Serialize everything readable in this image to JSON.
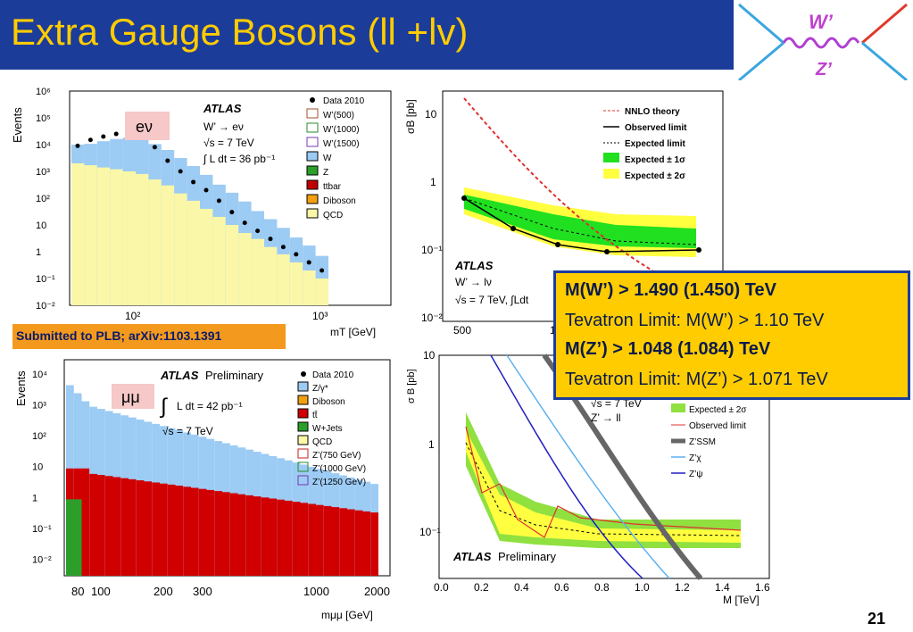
{
  "slide": {
    "title": "Extra Gauge Bosons (ll +lv)",
    "page_number": "21"
  },
  "feynman": {
    "label_w": "W’",
    "label_z": "Z’"
  },
  "banner": {
    "text": "Submitted to PLB; arXiv:1103.1391"
  },
  "limits_box": {
    "line1": "M(W’) > 1.490 (1.450) TeV",
    "line2": "Tevatron Limit: M(W’) > 1.10 TeV",
    "line3": "M(Z’) > 1.048 (1.084) TeV",
    "line4": "Tevatron Limit: M(Z’) > 1.071 TeV"
  },
  "colors": {
    "header_bg": "#1c3c9a",
    "title": "#ffcc00",
    "box": "#ffcc00",
    "banner": "#f39a1e"
  },
  "chart_data": [
    {
      "type": "bar",
      "name_key": "ev",
      "ylabel": "Events",
      "xlabel": "mT [GeV]",
      "channel_label": "eν",
      "atlas_label": "ATLAS",
      "info": [
        "W’ → eν",
        "√s = 7 TeV",
        "∫ L dt = 36 pb⁻¹"
      ],
      "ytick_labels": [
        "10⁶",
        "10⁵",
        "10⁴",
        "10³",
        "10²",
        "10",
        "1",
        "10⁻¹",
        "10⁻²"
      ],
      "xtick_labels": [
        "10²",
        "10³"
      ],
      "legend": [
        "Data 2010",
        "W’(500)",
        "W’(1000)",
        "W’(1500)",
        "W",
        "Z",
        "ttbar",
        "Diboson",
        "QCD"
      ],
      "series": [
        {
          "name": "QCD",
          "values": [
            2000,
            1700,
            1400,
            1200,
            1000,
            800,
            500,
            300,
            150,
            80,
            40,
            20,
            10,
            5,
            3,
            1.5,
            0.8,
            0.4,
            0.2,
            0.1
          ]
        },
        {
          "name": "W",
          "values": [
            8000,
            9000,
            12000,
            15000,
            17000,
            14000,
            10000,
            6000,
            3000,
            1500,
            700,
            300,
            150,
            70,
            30,
            15,
            7,
            3,
            1.5,
            0.6
          ]
        }
      ],
      "data_points": [
        9000,
        15000,
        20000,
        25000,
        25000,
        18000,
        8000,
        2500,
        1000,
        400,
        200,
        80,
        30,
        12,
        6,
        3,
        1.5,
        0.8,
        0.4,
        0.2
      ]
    },
    {
      "type": "line",
      "name_key": "wlimit",
      "ylabel": "σB [pb]",
      "xtick_labels": [
        "500",
        "10"
      ],
      "ytick_labels": [
        "10",
        "1",
        "10⁻¹",
        "10⁻²"
      ],
      "atlas_label": "ATLAS",
      "info": [
        "W’ → lν",
        "√s = 7 TeV,  ∫Ldt"
      ],
      "legend": [
        "NNLO theory",
        "Observed limit",
        "Expected  limit",
        "Expected ± 1σ",
        "Expected ± 2σ"
      ],
      "x": [
        500,
        750,
        1000,
        1250,
        1500
      ],
      "observed": [
        0.6,
        0.22,
        0.12,
        0.1,
        0.1
      ],
      "theory": [
        18,
        3.5,
        0.8,
        0.2,
        0.05
      ]
    },
    {
      "type": "bar",
      "name_key": "mumu",
      "ylabel": "Events",
      "xlabel": "mμμ [GeV]",
      "channel_label": "μμ",
      "atlas_label": "ATLAS",
      "atlas_sub": "Preliminary",
      "info": [
        "∫",
        "L dt = 42 pb⁻¹",
        "√s = 7 TeV"
      ],
      "ytick_labels": [
        "10⁴",
        "10³",
        "10²",
        "10",
        "1",
        "10⁻¹",
        "10⁻²"
      ],
      "xtick_labels": [
        "80",
        "100",
        "200",
        "300",
        "1000",
        "2000"
      ],
      "legend": [
        "Data 2010",
        "Z/γ*",
        "Diboson",
        "tt̄",
        "W+Jets",
        "QCD",
        "Z’(750 GeV)",
        "Z’(1000 GeV)",
        "Z’(1250 GeV)"
      ]
    },
    {
      "type": "line",
      "name_key": "zlimit",
      "ylabel": "σ B [pb]",
      "xlabel": "M [TeV]",
      "xtick_labels": [
        "0.0",
        "0.2",
        "0.4",
        "0.6",
        "0.8",
        "1.0",
        "1.2",
        "1.4",
        "1.6"
      ],
      "ytick_labels": [
        "10",
        "1",
        "10⁻¹"
      ],
      "atlas_label": "ATLAS",
      "atlas_sub": "Preliminary",
      "info": [
        "√s = 7 TeV",
        "Z’ → ll"
      ],
      "legend": [
        "Expected ± 2σ",
        "Observed limit",
        "Z’SSM",
        "Z’χ",
        "Z’ψ"
      ]
    }
  ]
}
